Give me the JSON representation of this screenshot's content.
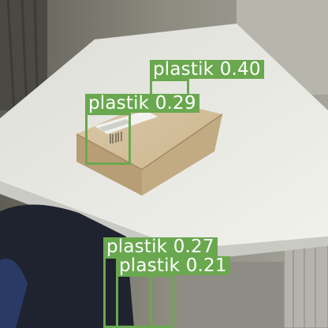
{
  "detection_color": "#6aa84f",
  "detections": [
    {
      "label": "plastik 0.40"
    },
    {
      "label": "plastik 0.29"
    },
    {
      "label": "plastik 0.27"
    },
    {
      "label": "plastik 0.21"
    }
  ]
}
